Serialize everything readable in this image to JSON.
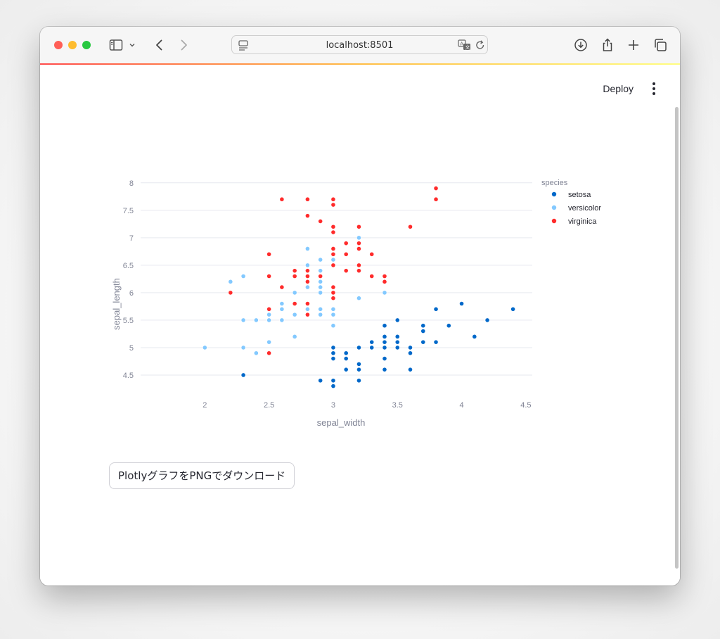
{
  "browser": {
    "url": "localhost:8501",
    "accent_colors": [
      "#ff4b4b",
      "#ffbd45",
      "#fffd80"
    ]
  },
  "app_header": {
    "deploy_label": "Deploy"
  },
  "download_button": {
    "label": "PlotlyグラフをPNGでダウンロード"
  },
  "chart_data": {
    "type": "scatter",
    "xlabel": "sepal_width",
    "ylabel": "sepal_length",
    "xlim": [
      1.5,
      4.55
    ],
    "ylim": [
      4.0,
      8.1
    ],
    "xticks": [
      "2",
      "2.5",
      "3",
      "3.5",
      "4",
      "4.5"
    ],
    "yticks": [
      "4.5",
      "5",
      "5.5",
      "6",
      "6.5",
      "7",
      "7.5",
      "8"
    ],
    "grid": "horizontal",
    "legend_title": "species",
    "legend_position": "top-right",
    "series": [
      {
        "name": "setosa",
        "color": "#0068c9",
        "points": [
          [
            3.5,
            5.1
          ],
          [
            3.0,
            4.9
          ],
          [
            3.2,
            4.7
          ],
          [
            3.1,
            4.6
          ],
          [
            3.6,
            5.0
          ],
          [
            3.9,
            5.4
          ],
          [
            3.4,
            4.6
          ],
          [
            3.4,
            5.0
          ],
          [
            2.9,
            4.4
          ],
          [
            3.1,
            4.9
          ],
          [
            3.7,
            5.4
          ],
          [
            3.4,
            4.8
          ],
          [
            3.0,
            4.8
          ],
          [
            3.0,
            4.3
          ],
          [
            4.0,
            5.8
          ],
          [
            4.4,
            5.7
          ],
          [
            3.9,
            5.4
          ],
          [
            3.5,
            5.1
          ],
          [
            3.8,
            5.7
          ],
          [
            3.8,
            5.1
          ],
          [
            3.4,
            5.4
          ],
          [
            3.7,
            5.1
          ],
          [
            3.6,
            4.6
          ],
          [
            3.3,
            5.1
          ],
          [
            3.4,
            4.8
          ],
          [
            3.0,
            5.0
          ],
          [
            3.4,
            5.0
          ],
          [
            3.5,
            5.2
          ],
          [
            3.4,
            5.2
          ],
          [
            3.2,
            4.7
          ],
          [
            3.1,
            4.8
          ],
          [
            3.4,
            5.4
          ],
          [
            4.1,
            5.2
          ],
          [
            4.2,
            5.5
          ],
          [
            3.1,
            4.9
          ],
          [
            3.2,
            5.0
          ],
          [
            3.5,
            5.5
          ],
          [
            3.6,
            4.9
          ],
          [
            3.0,
            4.4
          ],
          [
            3.4,
            5.1
          ],
          [
            3.5,
            5.0
          ],
          [
            2.3,
            4.5
          ],
          [
            3.2,
            4.4
          ],
          [
            3.5,
            5.0
          ],
          [
            3.8,
            5.1
          ],
          [
            3.0,
            4.8
          ],
          [
            3.8,
            5.1
          ],
          [
            3.2,
            4.6
          ],
          [
            3.7,
            5.3
          ],
          [
            3.3,
            5.0
          ]
        ]
      },
      {
        "name": "versicolor",
        "color": "#83c9ff",
        "points": [
          [
            3.2,
            7.0
          ],
          [
            3.2,
            6.4
          ],
          [
            3.1,
            6.9
          ],
          [
            2.3,
            5.5
          ],
          [
            2.8,
            6.5
          ],
          [
            2.8,
            5.7
          ],
          [
            3.3,
            6.3
          ],
          [
            2.4,
            4.9
          ],
          [
            2.9,
            6.6
          ],
          [
            2.7,
            5.2
          ],
          [
            2.0,
            5.0
          ],
          [
            3.0,
            5.9
          ],
          [
            2.2,
            6.0
          ],
          [
            2.9,
            6.1
          ],
          [
            2.9,
            5.6
          ],
          [
            3.1,
            6.7
          ],
          [
            3.0,
            5.6
          ],
          [
            2.7,
            5.8
          ],
          [
            2.2,
            6.2
          ],
          [
            2.5,
            5.6
          ],
          [
            3.2,
            5.9
          ],
          [
            2.8,
            6.1
          ],
          [
            2.5,
            6.3
          ],
          [
            2.8,
            6.1
          ],
          [
            2.9,
            6.4
          ],
          [
            3.0,
            6.6
          ],
          [
            2.8,
            6.8
          ],
          [
            3.0,
            6.7
          ],
          [
            2.9,
            6.0
          ],
          [
            2.6,
            5.7
          ],
          [
            2.4,
            5.5
          ],
          [
            2.4,
            5.5
          ],
          [
            2.7,
            5.8
          ],
          [
            2.7,
            6.0
          ],
          [
            3.0,
            5.4
          ],
          [
            3.4,
            6.0
          ],
          [
            3.1,
            6.7
          ],
          [
            2.3,
            6.3
          ],
          [
            3.0,
            5.6
          ],
          [
            2.5,
            5.5
          ],
          [
            2.6,
            5.5
          ],
          [
            3.0,
            6.1
          ],
          [
            2.6,
            5.8
          ],
          [
            2.3,
            5.0
          ],
          [
            2.7,
            5.6
          ],
          [
            3.0,
            5.7
          ],
          [
            2.9,
            5.7
          ],
          [
            2.9,
            6.2
          ],
          [
            2.5,
            5.1
          ],
          [
            2.8,
            5.7
          ]
        ]
      },
      {
        "name": "virginica",
        "color": "#ff2b2b",
        "points": [
          [
            3.3,
            6.3
          ],
          [
            2.7,
            5.8
          ],
          [
            3.0,
            7.1
          ],
          [
            2.9,
            6.3
          ],
          [
            3.0,
            6.5
          ],
          [
            3.0,
            7.6
          ],
          [
            2.5,
            4.9
          ],
          [
            2.9,
            7.3
          ],
          [
            2.5,
            6.7
          ],
          [
            3.6,
            7.2
          ],
          [
            3.2,
            6.5
          ],
          [
            2.7,
            6.4
          ],
          [
            3.0,
            6.8
          ],
          [
            2.5,
            5.7
          ],
          [
            2.8,
            5.8
          ],
          [
            3.2,
            6.4
          ],
          [
            3.0,
            6.5
          ],
          [
            3.8,
            7.7
          ],
          [
            2.6,
            7.7
          ],
          [
            2.2,
            6.0
          ],
          [
            3.2,
            6.9
          ],
          [
            2.8,
            5.6
          ],
          [
            2.8,
            7.7
          ],
          [
            2.7,
            6.3
          ],
          [
            3.3,
            6.7
          ],
          [
            3.2,
            7.2
          ],
          [
            2.8,
            6.2
          ],
          [
            3.0,
            6.1
          ],
          [
            2.8,
            6.4
          ],
          [
            3.0,
            7.2
          ],
          [
            2.8,
            7.4
          ],
          [
            3.8,
            7.9
          ],
          [
            2.8,
            6.4
          ],
          [
            2.8,
            6.3
          ],
          [
            2.6,
            6.1
          ],
          [
            3.0,
            7.7
          ],
          [
            3.4,
            6.3
          ],
          [
            3.1,
            6.4
          ],
          [
            3.0,
            6.0
          ],
          [
            3.1,
            6.9
          ],
          [
            3.1,
            6.7
          ],
          [
            3.1,
            6.9
          ],
          [
            2.7,
            5.8
          ],
          [
            3.2,
            6.8
          ],
          [
            3.3,
            6.7
          ],
          [
            3.0,
            6.7
          ],
          [
            2.5,
            6.3
          ],
          [
            3.0,
            6.5
          ],
          [
            3.4,
            6.2
          ],
          [
            3.0,
            5.9
          ]
        ]
      }
    ]
  }
}
